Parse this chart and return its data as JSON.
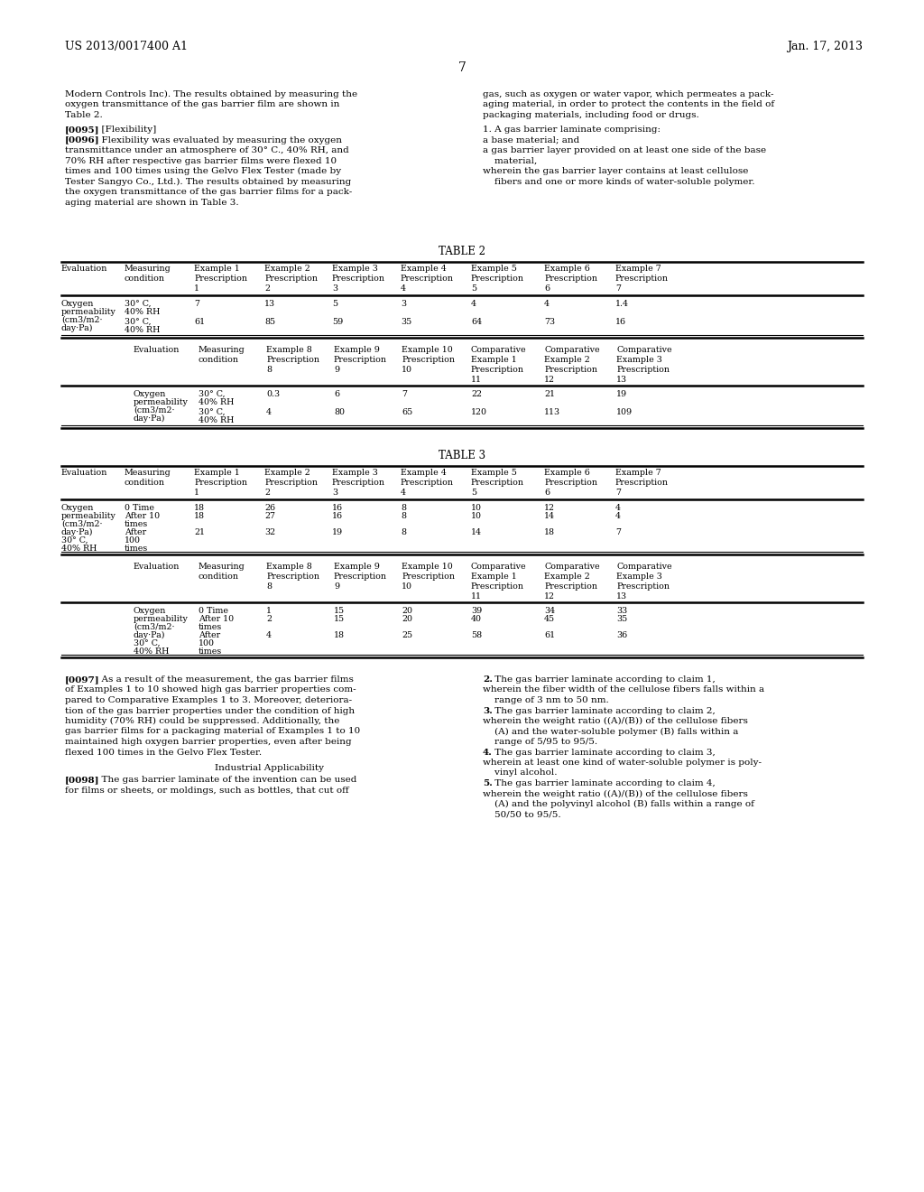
{
  "header_left": "US 2013/0017400 A1",
  "header_right": "Jan. 17, 2013",
  "page_number": "7",
  "bg_color": "#ffffff",
  "text_color": "#000000",
  "font_size_body": 7.5,
  "font_size_header": 9.0,
  "font_size_table_title": 8.5,
  "font_size_table": 6.8,
  "left_col_text": [
    "Modern Controls Inc). The results obtained by measuring the",
    "oxygen transmittance of the gas barrier film are shown in",
    "Table 2.",
    "",
    "[0095]  [Flexibility]",
    "[0096]  Flexibility was evaluated by measuring the oxygen",
    "transmittance under an atmosphere of 30° C., 40% RH, and",
    "70% RH after respective gas barrier films were flexed 10",
    "times and 100 times using the Gelvo Flex Tester (made by",
    "Tester Sangyo Co., Ltd.). The results obtained by measuring",
    "the oxygen transmittance of the gas barrier films for a pack-",
    "aging material are shown in Table 3."
  ],
  "right_col_text": [
    "gas, such as oxygen or water vapor, which permeates a pack-",
    "aging material, in order to protect the contents in the field of",
    "packaging materials, including food or drugs.",
    "",
    "1. A gas barrier laminate comprising:",
    "a base material; and",
    "a gas barrier layer provided on at least one side of the base",
    "    material,",
    "wherein the gas barrier layer contains at least cellulose",
    "    fibers and one or more kinds of water-soluble polymer."
  ],
  "bottom_left_text": [
    "[0097]  As a result of the measurement, the gas barrier films",
    "of Examples 1 to 10 showed high gas barrier properties com-",
    "pared to Comparative Examples 1 to 3. Moreover, deteriora-",
    "tion of the gas barrier properties under the condition of high",
    "humidity (70% RH) could be suppressed. Additionally, the",
    "gas barrier films for a packaging material of Examples 1 to 10",
    "maintained high oxygen barrier properties, even after being",
    "flexed 100 times in the Gelvo Flex Tester."
  ],
  "bottom_left_heading": "Industrial Applicability",
  "bottom_right_text": [
    "2. The gas barrier laminate according to claim 1,",
    "wherein the fiber width of the cellulose fibers falls within a",
    "    range of 3 nm to 50 nm.",
    "3. The gas barrier laminate according to claim 2,",
    "wherein the weight ratio ((A)/(B)) of the cellulose fibers",
    "    (A) and the water-soluble polymer (B) falls within a",
    "    range of 5/95 to 95/5.",
    "4. The gas barrier laminate according to claim 3,",
    "wherein at least one kind of water-soluble polymer is poly-",
    "    vinyl alcohol.",
    "5. The gas barrier laminate according to claim 4,",
    "wherein the weight ratio ((A)/(B)) of the cellulose fibers",
    "    (A) and the polyvinyl alcohol (B) falls within a range of",
    "    50/50 to 95/5."
  ]
}
